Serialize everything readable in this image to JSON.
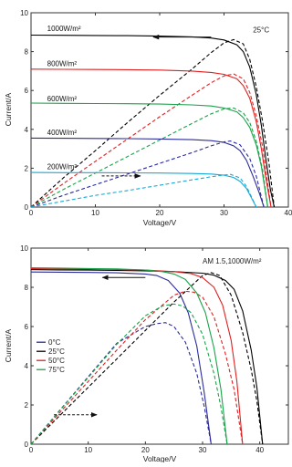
{
  "chart_data": [
    {
      "type": "line",
      "title": "",
      "xlabel": "Voltage/V",
      "ylabel": "Current/A",
      "xlim": [
        0,
        40
      ],
      "ylim": [
        0,
        10
      ],
      "xticks": [
        0,
        10,
        20,
        30,
        40
      ],
      "yticks": [
        0,
        2,
        4,
        6,
        8,
        10
      ],
      "grid": false,
      "annotations": [
        {
          "text": "25°C",
          "x": 34.5,
          "y": 9.0
        },
        {
          "text": "1000W/m²",
          "x": 2.5,
          "y": 9.05,
          "color": "#000000"
        },
        {
          "text": "800W/m²",
          "x": 2.5,
          "y": 7.25,
          "color": "#e02020"
        },
        {
          "text": "600W/m²",
          "x": 2.5,
          "y": 5.45,
          "color": "#1aa34a"
        },
        {
          "text": "400W/m²",
          "x": 2.5,
          "y": 3.7,
          "color": "#2b2b9b"
        },
        {
          "text": "200W/m²",
          "x": 2.5,
          "y": 1.95,
          "color": "#18a9d6"
        }
      ],
      "arrows": [
        {
          "from": [
            28.0,
            8.75
          ],
          "to": [
            19.0,
            8.75
          ],
          "style": "solid"
        },
        {
          "from": [
            11.0,
            1.6
          ],
          "to": [
            17.0,
            1.6
          ],
          "style": "dashed"
        }
      ],
      "series": [
        {
          "color": "#000000",
          "kind": "I-V",
          "x": [
            0,
            5,
            10,
            15,
            20,
            25,
            28,
            30,
            32,
            33,
            34,
            35,
            35.8,
            36.5,
            37.2,
            37.8
          ],
          "y": [
            8.85,
            8.84,
            8.83,
            8.82,
            8.8,
            8.76,
            8.7,
            8.6,
            8.35,
            8.0,
            7.2,
            5.8,
            4.2,
            2.5,
            0.9,
            0
          ]
        },
        {
          "color": "#000000",
          "kind": "P-V",
          "x": [
            0,
            5,
            10,
            15,
            20,
            25,
            28,
            30,
            31.5,
            33,
            34,
            35,
            36,
            37,
            37.8
          ],
          "y": [
            0,
            1.5,
            2.9,
            4.35,
            5.75,
            7.1,
            7.95,
            8.45,
            8.62,
            8.4,
            7.6,
            6.2,
            4.4,
            2.2,
            0
          ]
        },
        {
          "color": "#e02020",
          "kind": "I-V",
          "x": [
            0,
            5,
            10,
            15,
            20,
            25,
            28,
            30,
            32,
            33,
            34,
            35,
            35.8,
            36.5,
            37.3
          ],
          "y": [
            7.1,
            7.09,
            7.08,
            7.07,
            7.05,
            7.0,
            6.93,
            6.83,
            6.6,
            6.25,
            5.6,
            4.4,
            3.0,
            1.5,
            0
          ]
        },
        {
          "color": "#e02020",
          "kind": "P-V",
          "x": [
            0,
            5,
            10,
            15,
            20,
            25,
            28,
            30,
            31.5,
            33,
            34,
            35,
            36,
            37.3
          ],
          "y": [
            0,
            1.2,
            2.35,
            3.5,
            4.65,
            5.75,
            6.4,
            6.75,
            6.85,
            6.6,
            5.9,
            4.7,
            3.1,
            0
          ]
        },
        {
          "color": "#1aa34a",
          "kind": "I-V",
          "x": [
            0,
            5,
            10,
            15,
            20,
            25,
            28,
            30,
            32,
            33,
            34,
            35,
            35.8,
            36.8
          ],
          "y": [
            5.35,
            5.34,
            5.33,
            5.32,
            5.3,
            5.26,
            5.2,
            5.1,
            4.9,
            4.6,
            4.1,
            3.2,
            2.1,
            0
          ]
        },
        {
          "color": "#1aa34a",
          "kind": "P-V",
          "x": [
            0,
            5,
            10,
            15,
            20,
            25,
            28,
            30,
            31.5,
            33,
            34,
            35,
            36,
            36.8
          ],
          "y": [
            0,
            0.9,
            1.75,
            2.6,
            3.45,
            4.3,
            4.8,
            5.05,
            5.1,
            4.85,
            4.35,
            3.4,
            1.9,
            0
          ]
        },
        {
          "color": "#2b2b9b",
          "kind": "I-V",
          "x": [
            0,
            5,
            10,
            15,
            20,
            25,
            28,
            30,
            31.5,
            32.5,
            33.5,
            34.5,
            35.5,
            36.2
          ],
          "y": [
            3.55,
            3.54,
            3.53,
            3.52,
            3.5,
            3.47,
            3.42,
            3.33,
            3.15,
            2.9,
            2.4,
            1.6,
            0.7,
            0
          ]
        },
        {
          "color": "#2b2b9b",
          "kind": "P-V",
          "x": [
            0,
            5,
            10,
            15,
            20,
            25,
            28,
            30,
            31,
            32.5,
            34,
            35,
            36.2
          ],
          "y": [
            0,
            0.6,
            1.15,
            1.7,
            2.25,
            2.8,
            3.15,
            3.35,
            3.4,
            3.2,
            2.5,
            1.6,
            0
          ]
        },
        {
          "color": "#18a9d6",
          "kind": "I-V",
          "x": [
            0,
            5,
            10,
            15,
            20,
            25,
            28,
            30,
            31.5,
            32.5,
            33.5,
            34.3,
            35.0
          ],
          "y": [
            1.78,
            1.77,
            1.77,
            1.76,
            1.75,
            1.73,
            1.7,
            1.64,
            1.52,
            1.32,
            0.95,
            0.45,
            0
          ]
        },
        {
          "color": "#18a9d6",
          "kind": "P-V",
          "x": [
            0,
            5,
            10,
            15,
            20,
            25,
            28,
            30,
            31,
            32.5,
            33.5,
            34.3,
            35.0
          ],
          "y": [
            0,
            0.3,
            0.6,
            0.85,
            1.12,
            1.4,
            1.56,
            1.65,
            1.68,
            1.5,
            1.05,
            0.5,
            0
          ]
        }
      ]
    },
    {
      "type": "line",
      "title": "",
      "xlabel": "Voltage/V",
      "ylabel": "Current/A",
      "xlim": [
        0,
        45
      ],
      "ylim": [
        0,
        10
      ],
      "xticks": [
        0,
        10,
        20,
        30,
        40
      ],
      "yticks": [
        0,
        2,
        4,
        6,
        8,
        10
      ],
      "grid": false,
      "legend_position": "left",
      "annotations": [
        {
          "text": "AM 1.5,1000W/m²",
          "x": 30.0,
          "y": 9.2
        }
      ],
      "arrows": [
        {
          "from": [
            20.0,
            8.5
          ],
          "to": [
            12.5,
            8.5
          ],
          "style": "solid"
        },
        {
          "from": [
            4.0,
            1.5
          ],
          "to": [
            11.5,
            1.5
          ],
          "style": "dashed"
        }
      ],
      "series": [
        {
          "name": "0°C",
          "color": "#2b2b9b",
          "kind": "I-V",
          "x": [
            0,
            5,
            10,
            15,
            20,
            22,
            24,
            26,
            27.5,
            29,
            30.3,
            31.5
          ],
          "y": [
            8.78,
            8.77,
            8.76,
            8.74,
            8.68,
            8.6,
            8.35,
            7.7,
            6.7,
            5.0,
            2.6,
            0
          ]
        },
        {
          "name": "0°C",
          "color": "#2b2b9b",
          "kind": "P-V",
          "x": [
            0,
            5,
            10,
            15,
            20,
            22,
            23.5,
            25,
            27,
            29,
            30.3,
            31.5
          ],
          "y": [
            0,
            1.72,
            3.44,
            5.15,
            6.0,
            6.15,
            6.2,
            6.0,
            5.2,
            3.6,
            1.9,
            0
          ]
        },
        {
          "name": "25°C",
          "color": "#000000",
          "kind": "I-V",
          "x": [
            0,
            5,
            10,
            15,
            20,
            25,
            30,
            32,
            34,
            35.5,
            37,
            38.5,
            39.5,
            40.5
          ],
          "y": [
            8.9,
            8.89,
            8.88,
            8.86,
            8.84,
            8.8,
            8.72,
            8.62,
            8.35,
            7.9,
            6.8,
            4.8,
            2.9,
            0
          ]
        },
        {
          "name": "25°C",
          "color": "#000000",
          "kind": "P-V",
          "x": [
            0,
            5,
            10,
            15,
            20,
            25,
            30,
            31.5,
            33,
            35,
            37,
            38.5,
            39.5,
            40.5
          ],
          "y": [
            0,
            1.45,
            2.9,
            4.35,
            5.8,
            7.25,
            8.6,
            8.75,
            8.6,
            7.6,
            5.7,
            3.8,
            2.2,
            0
          ]
        },
        {
          "name": "50°C",
          "color": "#e02020",
          "kind": "I-V",
          "x": [
            0,
            5,
            10,
            15,
            20,
            25,
            28,
            30,
            32,
            33.5,
            35,
            36,
            37
          ],
          "y": [
            8.95,
            8.94,
            8.93,
            8.91,
            8.88,
            8.8,
            8.7,
            8.5,
            8.0,
            7.1,
            5.3,
            3.2,
            0
          ]
        },
        {
          "name": "50°C",
          "color": "#e02020",
          "kind": "P-V",
          "x": [
            0,
            5,
            10,
            15,
            20,
            25,
            27,
            28.5,
            30,
            32,
            34,
            35.5,
            37
          ],
          "y": [
            0,
            1.6,
            3.2,
            4.8,
            6.35,
            7.6,
            7.8,
            7.75,
            7.5,
            6.5,
            4.6,
            2.8,
            0
          ]
        },
        {
          "name": "75°C",
          "color": "#1aa34a",
          "kind": "I-V",
          "x": [
            0,
            5,
            10,
            15,
            20,
            23,
            25,
            27,
            29,
            30.5,
            32,
            33.2,
            34.3
          ],
          "y": [
            9.0,
            8.98,
            8.96,
            8.94,
            8.88,
            8.8,
            8.68,
            8.4,
            7.7,
            6.7,
            4.9,
            2.8,
            0
          ]
        },
        {
          "name": "75°C",
          "color": "#1aa34a",
          "kind": "P-V",
          "x": [
            0,
            5,
            10,
            15,
            20,
            23,
            25,
            26.5,
            28,
            30,
            32,
            33.2,
            34.3
          ],
          "y": [
            0,
            1.7,
            3.4,
            5.1,
            6.55,
            7.05,
            7.15,
            7.05,
            6.7,
            5.6,
            3.6,
            1.9,
            0
          ]
        }
      ]
    }
  ]
}
